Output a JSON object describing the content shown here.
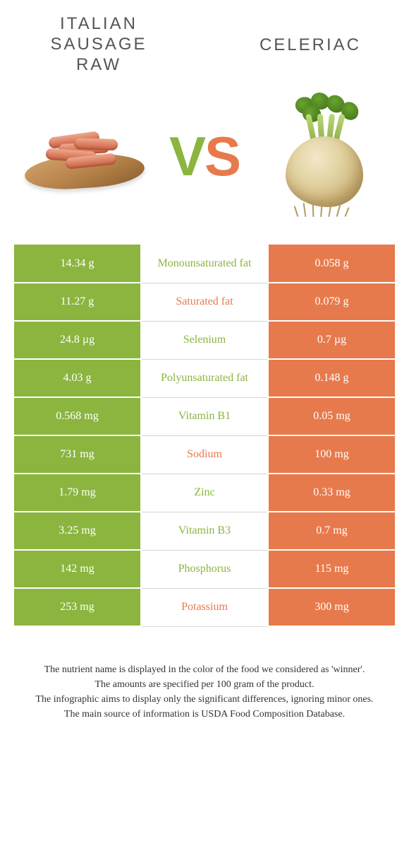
{
  "header": {
    "left_title": "ITALIAN SAUSAGE RAW",
    "right_title": "CELERIAC",
    "vs_v": "V",
    "vs_s": "S"
  },
  "colors": {
    "left": "#8bb53f",
    "right": "#e77a4c",
    "title_text": "#555555"
  },
  "rows": [
    {
      "label": "Monounsaturated fat",
      "left": "14.34 g",
      "right": "0.058 g",
      "winner": "left"
    },
    {
      "label": "Saturated fat",
      "left": "11.27 g",
      "right": "0.079 g",
      "winner": "right"
    },
    {
      "label": "Selenium",
      "left": "24.8 µg",
      "right": "0.7 µg",
      "winner": "left"
    },
    {
      "label": "Polyunsaturated fat",
      "left": "4.03 g",
      "right": "0.148 g",
      "winner": "left"
    },
    {
      "label": "Vitamin B1",
      "left": "0.568 mg",
      "right": "0.05 mg",
      "winner": "left"
    },
    {
      "label": "Sodium",
      "left": "731 mg",
      "right": "100 mg",
      "winner": "right"
    },
    {
      "label": "Zinc",
      "left": "1.79 mg",
      "right": "0.33 mg",
      "winner": "left"
    },
    {
      "label": "Vitamin B3",
      "left": "3.25 mg",
      "right": "0.7 mg",
      "winner": "left"
    },
    {
      "label": "Phosphorus",
      "left": "142 mg",
      "right": "115 mg",
      "winner": "left"
    },
    {
      "label": "Potassium",
      "left": "253 mg",
      "right": "300 mg",
      "winner": "right"
    }
  ],
  "footnote": {
    "l1": "The nutrient name is displayed in the color of the food we considered as 'winner'.",
    "l2": "The amounts are specified per 100 gram of the product.",
    "l3": "The infographic aims to display only the significant differences, ignoring minor ones.",
    "l4": "The main source of information is USDA Food Composition Database."
  }
}
